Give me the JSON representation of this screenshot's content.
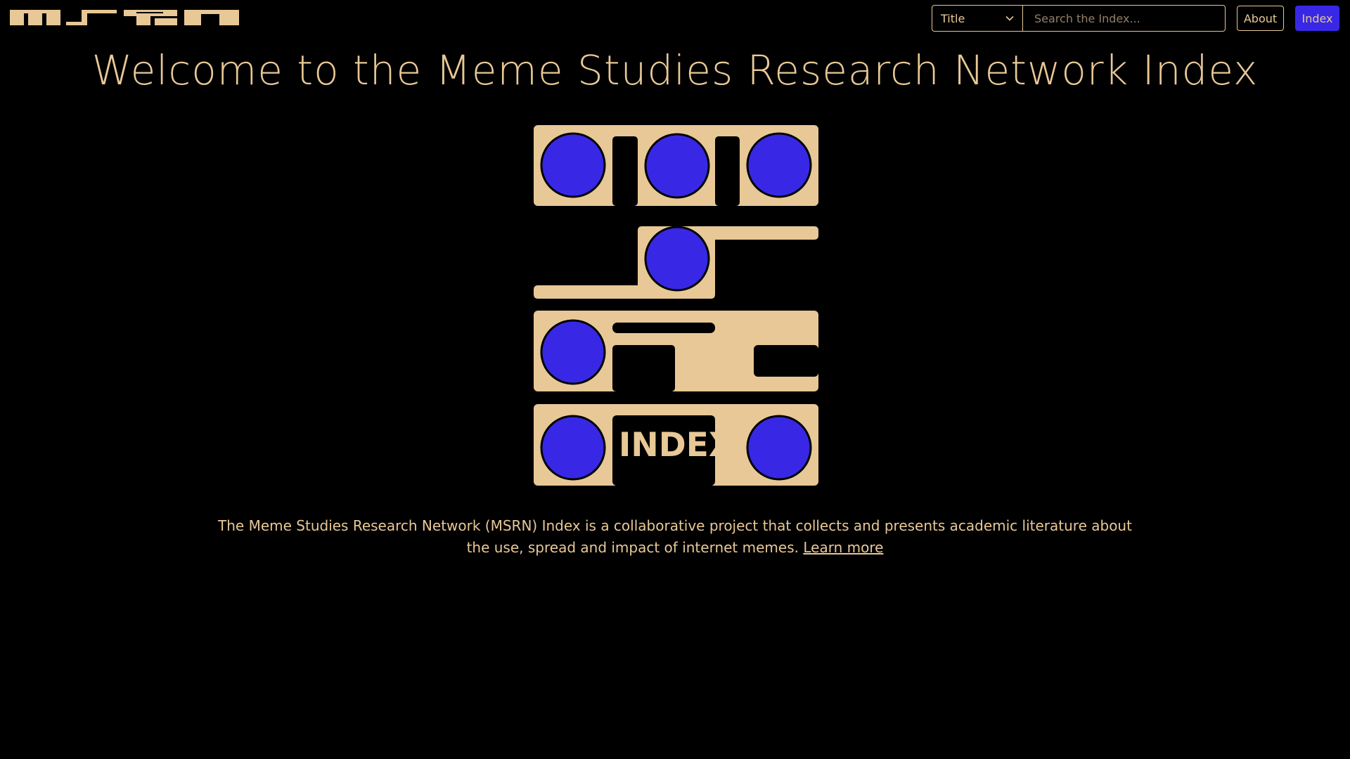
{
  "brand": {
    "name": "MSRN",
    "beige": "#e8c896",
    "blue": "#3828e6",
    "background": "#000000"
  },
  "header": {
    "search": {
      "field_selected": "Title",
      "placeholder": "Search the Index..."
    },
    "about_label": "About",
    "index_label": "Index"
  },
  "main": {
    "title": "Welcome to the Meme Studies Research Network Index",
    "logo_word": "INDEX",
    "intro_text": "The Meme Studies Research Network (MSRN) Index is a collaborative project that collects and presents academic literature about the use, spread and impact of internet memes.",
    "learn_more_label": "Learn more"
  }
}
